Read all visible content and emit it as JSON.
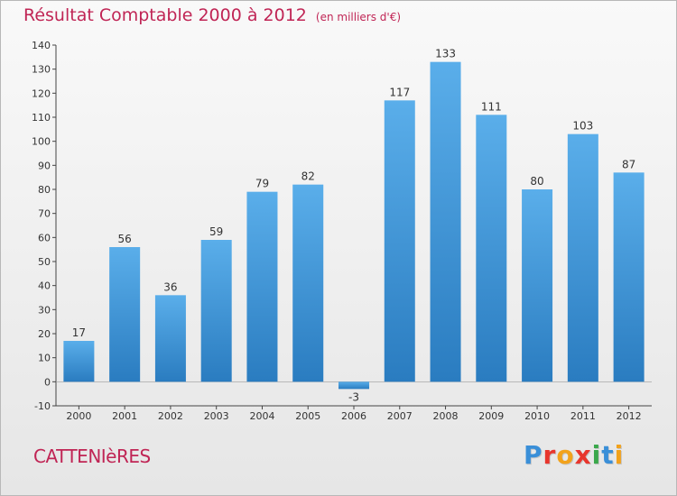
{
  "header": {
    "title": "Résultat Comptable 2000 à 2012",
    "unit": "(en milliers d'€)"
  },
  "footer": {
    "commune": "CATTENIèRES",
    "brand_letters": [
      {
        "ch": "P",
        "color": "#3a8fd8"
      },
      {
        "ch": "r",
        "color": "#e8362d"
      },
      {
        "ch": "o",
        "color": "#f2a21b"
      },
      {
        "ch": "x",
        "color": "#e8362d"
      },
      {
        "ch": "i",
        "color": "#3aa84b"
      },
      {
        "ch": "t",
        "color": "#3a8fd8"
      },
      {
        "ch": "i",
        "color": "#f2a21b"
      }
    ]
  },
  "chart_data": {
    "type": "bar",
    "categories": [
      "2000",
      "2001",
      "2002",
      "2003",
      "2004",
      "2005",
      "2006",
      "2007",
      "2008",
      "2009",
      "2010",
      "2011",
      "2012"
    ],
    "values": [
      17,
      56,
      36,
      59,
      79,
      82,
      -3,
      117,
      133,
      111,
      80,
      103,
      87
    ],
    "title": "Résultat Comptable 2000 à 2012",
    "xlabel": "",
    "ylabel": "",
    "ylim": [
      -10,
      140
    ],
    "yticks": [
      -10,
      0,
      10,
      20,
      30,
      40,
      50,
      60,
      70,
      80,
      90,
      100,
      110,
      120,
      130,
      140
    ],
    "grid": false,
    "bar_color": "#3d95d8"
  }
}
